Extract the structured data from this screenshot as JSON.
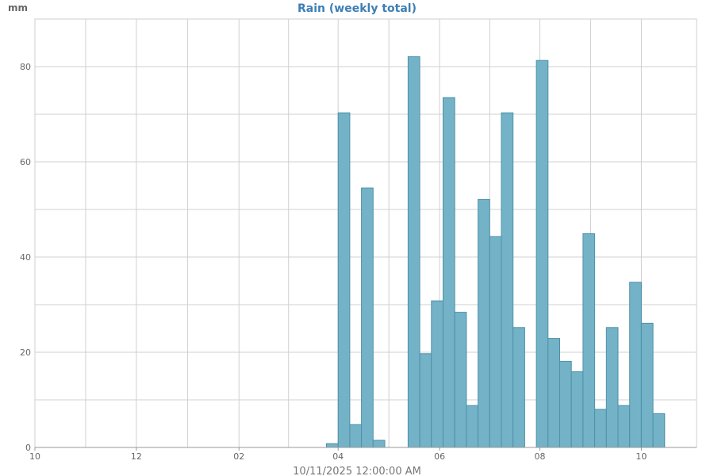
{
  "chart_data": {
    "type": "bar",
    "title": "Rain (weekly total)",
    "ylabel": "mm",
    "footer": "10/11/2025 12:00:00 AM",
    "ylim": [
      0,
      90
    ],
    "y_ticks": [
      0,
      20,
      40,
      60,
      80
    ],
    "x_tick_labels": [
      "10",
      "12",
      "02",
      "04",
      "06",
      "08",
      "10"
    ],
    "x_tick_weeks": [
      0,
      8.7,
      17.5,
      26,
      34.7,
      43.3,
      52
    ],
    "grid": true,
    "bar_color": "#74b3c7",
    "bar_edge_color": "#4d90a8",
    "title_color": "#3d7fb5",
    "x_unit": "weeks (bar index from first tick)",
    "values": [
      0,
      0,
      0,
      0,
      0,
      0,
      0,
      0,
      0,
      0,
      0,
      0,
      0,
      0,
      0,
      0,
      0,
      0,
      0,
      0,
      0,
      0,
      0,
      0,
      0,
      0.8,
      70.3,
      4.8,
      54.5,
      1.5,
      0,
      0,
      82.1,
      19.7,
      30.8,
      73.5,
      28.4,
      8.8,
      52.1,
      44.3,
      70.3,
      25.2,
      0,
      81.3,
      22.9,
      18.1,
      15.9,
      44.9,
      8.0,
      25.2,
      8.8,
      34.7,
      26.1,
      7.1
    ],
    "first_bar_week": 0
  }
}
